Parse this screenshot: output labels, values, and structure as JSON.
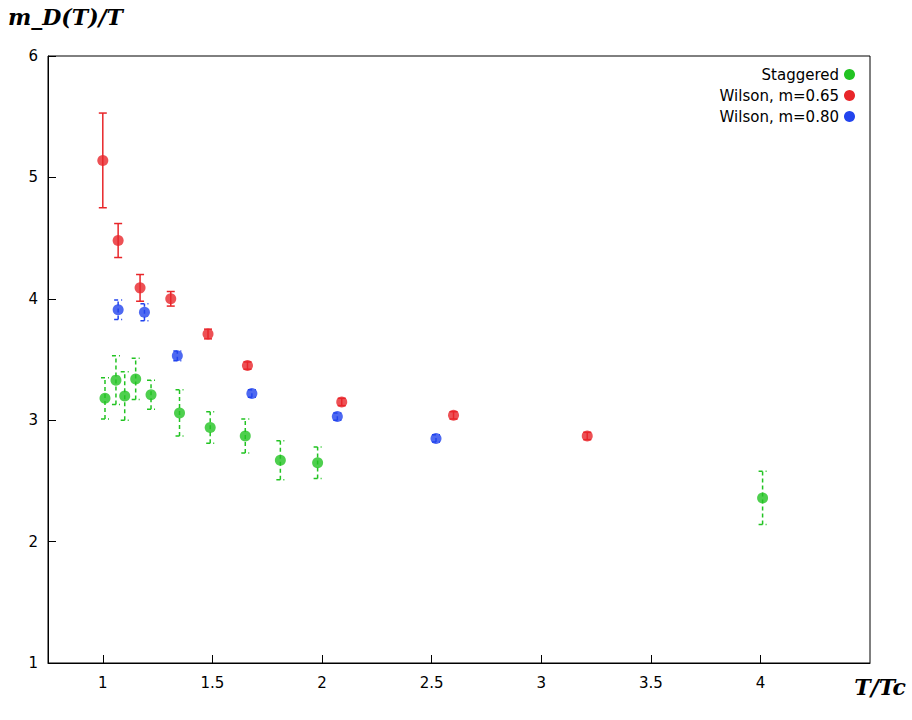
{
  "chart_data": {
    "type": "scatter",
    "ylabel": "m_D(T)/T",
    "xlabel": "T/Tc",
    "xlim": [
      0.75,
      4.5
    ],
    "xticks": [
      1,
      1.5,
      2,
      2.5,
      3,
      3.5,
      4
    ],
    "ylim": [
      1,
      6
    ],
    "yticks": [
      1,
      2,
      3,
      4,
      5,
      6
    ],
    "grid": false,
    "legend": "upper right",
    "series": [
      {
        "name": "Staggered",
        "color": "#22c322",
        "marker": "circle",
        "line_style": "dashed",
        "x": [
          1.01,
          1.06,
          1.1,
          1.15,
          1.22,
          1.35,
          1.49,
          1.65,
          1.81,
          1.98,
          4.01
        ],
        "values": [
          3.18,
          3.33,
          3.2,
          3.34,
          3.21,
          3.06,
          2.94,
          2.87,
          2.67,
          2.65,
          2.36
        ],
        "errors": [
          0.17,
          0.2,
          0.2,
          0.17,
          0.12,
          0.19,
          0.13,
          0.14,
          0.16,
          0.13,
          0.22
        ]
      },
      {
        "name": "Wilson, m=0.65",
        "color": "#e8262a",
        "marker": "circle",
        "line_style": "solid",
        "x": [
          1.0,
          1.07,
          1.17,
          1.31,
          1.48,
          1.66,
          2.09,
          2.6,
          3.21
        ],
        "values": [
          5.14,
          4.48,
          4.09,
          4.0,
          3.71,
          3.45,
          3.15,
          3.04,
          2.87
        ],
        "errors": [
          0.39,
          0.14,
          0.11,
          0.06,
          0.04,
          0.03,
          0.03,
          0.03,
          0.03
        ]
      },
      {
        "name": "Wilson, m=0.80",
        "color": "#2244ee",
        "marker": "circle",
        "line_style": "dashed",
        "x": [
          1.07,
          1.19,
          1.34,
          1.68,
          2.07,
          2.52
        ],
        "values": [
          3.91,
          3.89,
          3.53,
          3.22,
          3.03,
          2.85
        ],
        "errors": [
          0.08,
          0.07,
          0.04,
          0.03,
          0.03,
          0.03
        ]
      }
    ]
  }
}
